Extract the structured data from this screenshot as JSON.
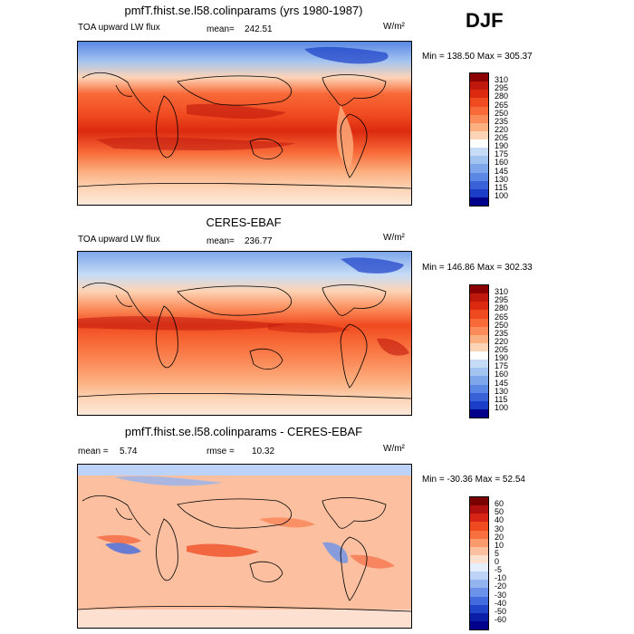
{
  "season": "DJF",
  "panels": [
    {
      "title": "pmfT.fhist.se.l58.colinparams (yrs 1980-1987)",
      "left_label": "TOA upward LW flux",
      "stat_label": "mean=",
      "stat_value": "242.51",
      "units": "W/m²",
      "minmax": "Min = 138.50 Max = 305.37",
      "colorbar_labels": [
        "310",
        "295",
        "280",
        "265",
        "250",
        "235",
        "220",
        "205",
        "190",
        "175",
        "160",
        "145",
        "130",
        "115",
        "100"
      ],
      "colorbar_colors": [
        "#8b0000",
        "#c0180c",
        "#dc2a10",
        "#f04a20",
        "#f86a38",
        "#fb8c5a",
        "#fcb080",
        "#fdd4b6",
        "#ffffff",
        "#c6dcf6",
        "#a4c4f0",
        "#7ea6ea",
        "#5a88e4",
        "#3a62d8",
        "#1a3ec8",
        "#00008b"
      ],
      "kind": "olr"
    },
    {
      "title": "CERES-EBAF",
      "left_label": "TOA upward LW flux",
      "stat_label": "mean=",
      "stat_value": "236.77",
      "units": "W/m²",
      "minmax": "Min = 146.86 Max = 302.33",
      "colorbar_labels": [
        "310",
        "295",
        "280",
        "265",
        "250",
        "235",
        "220",
        "205",
        "190",
        "175",
        "160",
        "145",
        "130",
        "115",
        "100"
      ],
      "colorbar_colors": [
        "#8b0000",
        "#c0180c",
        "#dc2a10",
        "#f04a20",
        "#f86a38",
        "#fb8c5a",
        "#fcb080",
        "#fdd4b6",
        "#ffffff",
        "#c6dcf6",
        "#a4c4f0",
        "#7ea6ea",
        "#5a88e4",
        "#3a62d8",
        "#1a3ec8",
        "#00008b"
      ],
      "kind": "olr"
    },
    {
      "title": "pmfT.fhist.se.l58.colinparams - CERES-EBAF",
      "left_label": "mean =",
      "left_value": "5.74",
      "stat_label": "rmse =",
      "stat_value": "10.32",
      "units": "W/m²",
      "minmax": "Min = -30.36 Max =  52.54",
      "colorbar_labels": [
        "60",
        "50",
        "40",
        "30",
        "20",
        "10",
        "5",
        "0",
        "-5",
        "-10",
        "-20",
        "-30",
        "-40",
        "-50",
        "-60"
      ],
      "colorbar_colors": [
        "#7a0000",
        "#b01010",
        "#d82414",
        "#f04a20",
        "#f8703e",
        "#fb9a6c",
        "#fcc0a0",
        "#fde0d0",
        "#e4eefc",
        "#bcd2f6",
        "#94b4f0",
        "#6a92ea",
        "#426cde",
        "#2244c8",
        "#0a1ea8",
        "#00008b"
      ],
      "kind": "diff"
    }
  ]
}
